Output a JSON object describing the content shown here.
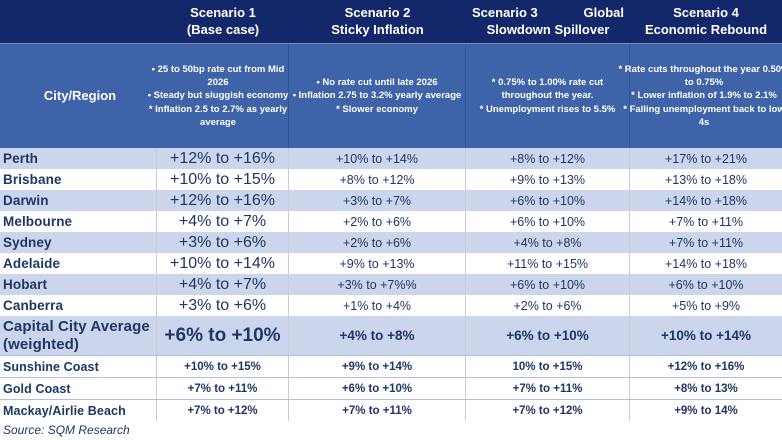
{
  "colors": {
    "header_bg": "#13286B",
    "description_band_bg": "#3E63A8",
    "row_shade_bg": "#CBD5EB",
    "row_white_bg": "#FFFFFF",
    "text_navy": "#1D3767",
    "header_text": "#FFFFFF",
    "divider_gray": "#C6CCDA",
    "regional_divider": "#AEC0DF"
  },
  "header": {
    "row_header_label": "City/Region",
    "scenarios": [
      {
        "title": "Scenario 1",
        "subtitle": "(Base case)"
      },
      {
        "title": "Scenario 2",
        "subtitle": "Sticky Inflation"
      },
      {
        "title": "Scenario 3",
        "title_right": "Global",
        "subtitle": "Slowdown Spillover"
      },
      {
        "title": "Scenario 4",
        "subtitle": "Economic Rebound"
      }
    ],
    "descriptions": [
      [
        "• 25 to 50bp rate cut from Mid 2026",
        "• Steady but sluggish economy",
        "* Inflation 2.5 to 2.7% as yearly average"
      ],
      [
        "• No rate cut until late 2026",
        "• Inflation 2.75 to 3.2% yearly average",
        "* Slower economy"
      ],
      [
        "* 0.75% to 1.00% rate cut throughout the year.",
        "* Unemployment rises to 5.5%"
      ],
      [
        "* Rate cuts throughout the year 0.50% to 0.75%",
        "* Lower inflation of 1.9% to 2.1%",
        "* Falling unemployment back to low 4s"
      ]
    ]
  },
  "chart_data": {
    "type": "table",
    "row_header": "City/Region",
    "columns": [
      "Scenario 1 (Base case)",
      "Scenario 2 Sticky Inflation",
      "Scenario 3 Global Slowdown Spillover",
      "Scenario 4 Economic Rebound"
    ],
    "rows": [
      {
        "city": "Perth",
        "values": [
          "+12% to +16%",
          "+10% to +14%",
          "+8% to +12%",
          "+17% to +21%"
        ]
      },
      {
        "city": "Brisbane",
        "values": [
          "+10% to +15%",
          "+8% to +12%",
          "+9% to +13%",
          "+13% to +18%"
        ]
      },
      {
        "city": "Darwin",
        "values": [
          "+12% to +16%",
          "+3% to +7%",
          "+6% to +10%",
          "+14% to +18%"
        ]
      },
      {
        "city": "Melbourne",
        "values": [
          "+4% to +7%",
          "+2% to +6%",
          "+6% to +10%",
          "+7% to +11%"
        ]
      },
      {
        "city": "Sydney",
        "values": [
          "+3% to +6%",
          "+2% to +6%",
          "+4% to +8%",
          "+7% to +11%"
        ]
      },
      {
        "city": "Adelaide",
        "values": [
          "+10% to +14%",
          "+9% to +13%",
          "+11% to +15%",
          "+14% to +18%"
        ]
      },
      {
        "city": "Hobart",
        "values": [
          "+4% to +7%",
          "+3% to +7%%",
          "+6% to +10%",
          "+6% to +10%"
        ]
      },
      {
        "city": "Canberra",
        "values": [
          "+3% to +6%",
          "+1% to +4%",
          "+2% to +6%",
          "+5% to +9%"
        ]
      },
      {
        "city": "Capital City Average",
        "city_note": "(weighted)",
        "values": [
          "+6% to +10%",
          "+4% to +8%",
          "+6% to +10%",
          "+10% to +14%"
        ]
      },
      {
        "city": "Sunshine Coast",
        "values": [
          "+10% to +15%",
          "+9% to +14%",
          "10% to +15%",
          "+12% to +16%"
        ]
      },
      {
        "city": "Gold Coast",
        "values": [
          "+7% to +11%",
          "+6% to +10%",
          "+7% to +11%",
          "+8% to 13%"
        ]
      },
      {
        "city": "Mackay/Airlie Beach",
        "values": [
          "+7% to +12%",
          "+7% to +11%",
          "+7% to +12%",
          "+9% to 14%"
        ]
      }
    ],
    "source": "Source: SQM Research"
  }
}
